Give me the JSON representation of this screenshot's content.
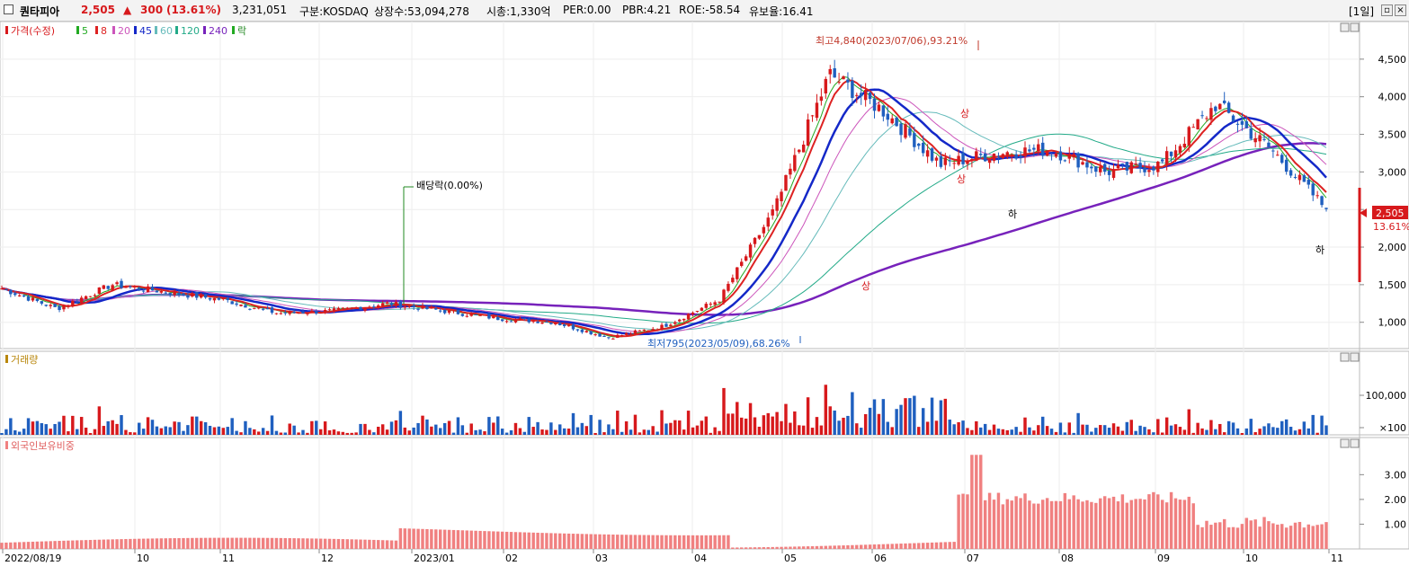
{
  "header": {
    "name": "퀀타피아",
    "price": "2,505",
    "change_arrow": "▲",
    "change": "300",
    "change_pct": "(13.61%)",
    "volume": "3,231,051",
    "market": "구분:KOSDAQ",
    "shares": "상장수:53,094,278",
    "mcap": "시총:1,330억",
    "per": "PER:0.00",
    "pbr": "PBR:4.21",
    "roe": "ROE:-58.54",
    "retention": "유보율:16.41",
    "period": "[1일]"
  },
  "colors": {
    "up": "#d7191c",
    "down": "#1f5fbf",
    "ma5": "#22aa22",
    "ma8": "#dd2222",
    "ma20": "#cc55bb",
    "ma45": "#1428c8",
    "ma60": "#66bbbb",
    "ma120": "#22aa88",
    "ma240": "#7722bb",
    "volume_label": "#b8860b",
    "foreign": "#f08080"
  },
  "legend": {
    "price_label": "가격(수정)",
    "ma": [
      "5",
      "8",
      "20",
      "45",
      "60",
      "120",
      "240"
    ],
    "rak": "락"
  },
  "annotations": {
    "high": "최고4,840(2023/07/06),93.21%",
    "low": "최저795(2023/05/09),68.26%",
    "dividend": "배당락(0.00%)",
    "limit_up": "상",
    "limit_down": "하"
  },
  "last_price_tag": "2,505",
  "last_pct_tag": "13.61%",
  "x_axis_labels": [
    "2022/08/19",
    "10",
    "11",
    "12",
    "2023/01",
    "02",
    "03",
    "04",
    "05",
    "06",
    "07",
    "08",
    "09",
    "10",
    "11"
  ],
  "chart_data": [
    {
      "type": "candlestick",
      "panel": "price",
      "y_ticks": [
        "1,000",
        "1,500",
        "2,000",
        "2,500",
        "3,000",
        "3,500",
        "4,000",
        "4,500"
      ],
      "ylim": [
        650,
        5000
      ],
      "close_series_approx": [
        {
          "x": "2022/08/19",
          "y": 1450
        },
        {
          "x": "2022/09",
          "y": 1180
        },
        {
          "x": "2022/10 early",
          "y": 1500
        },
        {
          "x": "2022/10",
          "y": 1400
        },
        {
          "x": "2022/11",
          "y": 1300
        },
        {
          "x": "2022/12",
          "y": 1120
        },
        {
          "x": "2023/01",
          "y": 1150
        },
        {
          "x": "2023/01 mid",
          "y": 1250
        },
        {
          "x": "2023/02",
          "y": 1150
        },
        {
          "x": "2023/03",
          "y": 1050
        },
        {
          "x": "2023/04",
          "y": 1000
        },
        {
          "x": "2023/05/09",
          "y": 795
        },
        {
          "x": "2023/05 end",
          "y": 950
        },
        {
          "x": "2023/06",
          "y": 1300
        },
        {
          "x": "2023/06 end",
          "y": 2500
        },
        {
          "x": "2023/07/06",
          "y": 4300
        },
        {
          "x": "2023/07 mid",
          "y": 3800
        },
        {
          "x": "2023/07 end",
          "y": 3100
        },
        {
          "x": "2023/08",
          "y": 3250
        },
        {
          "x": "2023/08 end",
          "y": 3300
        },
        {
          "x": "2023/09",
          "y": 3000
        },
        {
          "x": "2023/09 end",
          "y": 3100
        },
        {
          "x": "2023/10 mid",
          "y": 3900
        },
        {
          "x": "2023/10 end",
          "y": 3300
        },
        {
          "x": "2023/11",
          "y": 2505
        }
      ]
    },
    {
      "type": "bar",
      "panel": "volume",
      "title": "거래량",
      "y_ticks": [
        "100,000",
        "×100"
      ]
    },
    {
      "type": "bar",
      "panel": "foreign_ownership",
      "title": "외국인보유비중",
      "y_ticks": [
        "1.00",
        "2.00",
        "3.00"
      ],
      "ylim": [
        0,
        4.5
      ]
    }
  ]
}
